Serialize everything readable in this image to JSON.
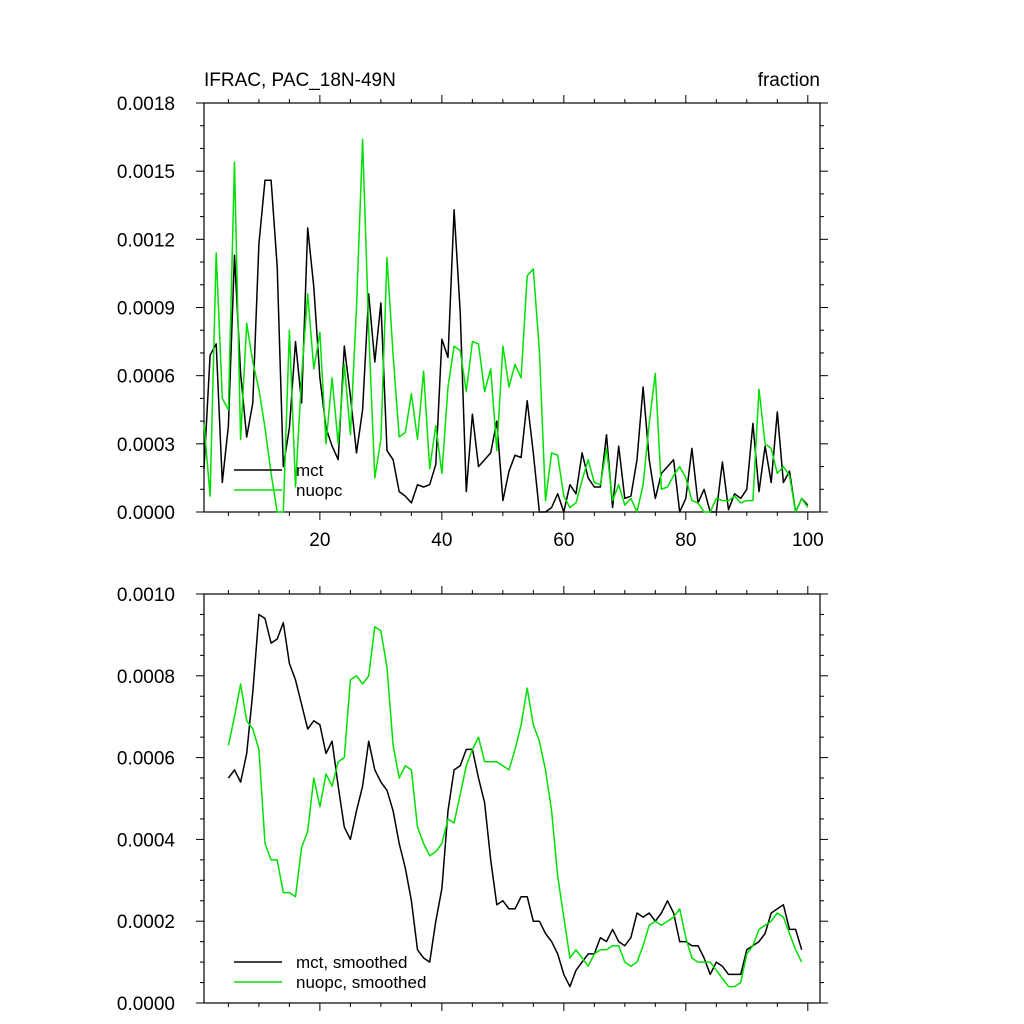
{
  "colors": {
    "mct": "#000000",
    "nuopc": "#00e000"
  },
  "chart_data": [
    {
      "type": "line",
      "title": "IFRAC, PAC_18N-49N",
      "units": "fraction",
      "xlim": [
        1,
        102
      ],
      "ylim": [
        0,
        0.0018
      ],
      "xticks": [
        20,
        40,
        60,
        80,
        100
      ],
      "xtick_labels": [
        "20",
        "40",
        "60",
        "80",
        "100"
      ],
      "yticks": [
        0,
        0.0003,
        0.0006,
        0.0009,
        0.0012,
        0.0015,
        0.0018
      ],
      "ytick_labels": [
        "0.0000",
        "0.0003",
        "0.0006",
        "0.0009",
        "0.0012",
        "0.0015",
        "0.0018"
      ],
      "grid": false,
      "legend_position": "bottom-left",
      "x_start": 1,
      "series": [
        {
          "name": "mct",
          "color": "#000000",
          "values": [
            0.00019,
            0.00069,
            0.00074,
            0.00013,
            0.00038,
            0.00113,
            0.00061,
            0.00033,
            0.00048,
            0.00118,
            0.00146,
            0.00146,
            0.00108,
            0.0002,
            0.00037,
            0.00075,
            0.00048,
            0.00125,
            0.00099,
            0.00059,
            0.00037,
            0.00029,
            0.00023,
            0.00073,
            0.00051,
            0.00026,
            0.00045,
            0.00096,
            0.00066,
            0.00092,
            0.00027,
            0.00023,
            9e-05,
            7e-05,
            4e-05,
            0.00012,
            0.00011,
            0.00012,
            0.00021,
            0.00076,
            0.00068,
            0.00133,
            0.00088,
            9e-05,
            0.00043,
            0.0002,
            0.00023,
            0.00026,
            0.0004,
            5e-05,
            0.00018,
            0.00025,
            0.00024,
            0.00049,
            0.00026,
            0.0,
            0.0,
            2e-05,
            8e-05,
            0.0,
            0.00012,
            8e-05,
            0.00026,
            0.00015,
            0.00011,
            0.00011,
            0.00034,
            2e-05,
            0.00029,
            6e-05,
            7e-05,
            0.00023,
            0.00055,
            0.00023,
            6e-05,
            0.00017,
            0.0002,
            0.00023,
            0.0,
            6e-05,
            0.00028,
            4e-05,
            0.0001,
            0.0,
            0.0,
            0.00022,
            1e-05,
            8e-05,
            6e-05,
            0.0001,
            0.00039,
            9e-05,
            0.00029,
            0.00013,
            0.00044,
            0.00013,
            0.00018,
            0.0,
            6e-05,
            3e-05
          ]
        },
        {
          "name": "nuopc",
          "color": "#00e000",
          "values": [
            0.00039,
            7e-05,
            0.00114,
            0.0005,
            0.00045,
            0.00154,
            0.00032,
            0.00083,
            0.00066,
            0.00054,
            0.00037,
            0.00017,
            0.0,
            0.0,
            0.0008,
            0.00011,
            0.0006,
            0.00096,
            0.00063,
            0.00079,
            0.0003,
            0.00059,
            0.0003,
            0.00065,
            0.00034,
            0.0009,
            0.00164,
            0.0008,
            0.00015,
            0.00032,
            0.00112,
            0.00069,
            0.00033,
            0.00035,
            0.00052,
            0.00032,
            0.00062,
            0.00019,
            0.00038,
            0.00017,
            0.00055,
            0.00073,
            0.00071,
            0.00053,
            0.00075,
            0.00074,
            0.00053,
            0.00063,
            0.00027,
            0.00073,
            0.00055,
            0.00065,
            0.00059,
            0.00104,
            0.00107,
            0.00071,
            5e-05,
            0.00026,
            0.00025,
            7e-05,
            2e-05,
            4e-05,
            0.00014,
            0.00023,
            0.00013,
            0.00012,
            0.00028,
            5e-05,
            0.00012,
            3e-05,
            6e-05,
            0.0,
            0.00012,
            0.00039,
            0.00061,
            0.0001,
            0.00011,
            0.00016,
            0.0002,
            0.00015,
            5e-05,
            4e-05,
            0.0,
            0.0,
            6e-05,
            5e-05,
            5e-05,
            7e-05,
            4e-05,
            5e-05,
            5e-05,
            0.00054,
            0.0003,
            0.00028,
            0.00017,
            0.0002,
            0.00016,
            0.0,
            6e-05,
            2e-05
          ]
        }
      ]
    },
    {
      "type": "line",
      "xlim": [
        1,
        102
      ],
      "ylim": [
        0,
        0.001
      ],
      "xticks": [
        20,
        40,
        60,
        80,
        100
      ],
      "yticks": [
        0,
        0.0002,
        0.0004,
        0.0006,
        0.0008,
        0.001
      ],
      "ytick_labels": [
        "0.0000",
        "0.0002",
        "0.0004",
        "0.0006",
        "0.0008",
        "0.0010"
      ],
      "grid": false,
      "legend_position": "bottom-left",
      "x_start": 5,
      "series": [
        {
          "name": "mct, smoothed",
          "color": "#000000",
          "values": [
            0.00055,
            0.00057,
            0.00054,
            0.00061,
            0.00076,
            0.00095,
            0.00094,
            0.00088,
            0.00089,
            0.00093,
            0.00083,
            0.00079,
            0.00073,
            0.00067,
            0.00069,
            0.00068,
            0.00061,
            0.00064,
            0.00053,
            0.00043,
            0.0004,
            0.00047,
            0.00053,
            0.00064,
            0.00057,
            0.00054,
            0.00052,
            0.00047,
            0.00039,
            0.00033,
            0.00025,
            0.00013,
            0.00011,
            0.0001,
            0.0002,
            0.00028,
            0.00047,
            0.00057,
            0.00058,
            0.00062,
            0.00062,
            0.00055,
            0.00049,
            0.00035,
            0.00024,
            0.00025,
            0.00023,
            0.00023,
            0.00026,
            0.00026,
            0.0002,
            0.0002,
            0.00017,
            0.00015,
            0.00012,
            7e-05,
            4e-05,
            8e-05,
            0.0001,
            0.00012,
            0.00012,
            0.00016,
            0.00015,
            0.00018,
            0.00015,
            0.00014,
            0.00016,
            0.00022,
            0.00021,
            0.00022,
            0.0002,
            0.00022,
            0.00025,
            0.00022,
            0.00015,
            0.00015,
            0.00014,
            0.00014,
            0.00011,
            7e-05,
            0.0001,
            9e-05,
            7e-05,
            7e-05,
            7e-05,
            0.00013,
            0.00014,
            0.00015,
            0.00017,
            0.00022,
            0.00023,
            0.00024,
            0.00018,
            0.00018,
            0.00013
          ]
        },
        {
          "name": "nuopc, smoothed",
          "color": "#00e000",
          "values": [
            0.00063,
            0.0007,
            0.00078,
            0.00069,
            0.00067,
            0.00062,
            0.00039,
            0.00035,
            0.00035,
            0.00027,
            0.00027,
            0.00026,
            0.00038,
            0.00042,
            0.00055,
            0.00048,
            0.00056,
            0.00053,
            0.00059,
            0.0006,
            0.00079,
            0.0008,
            0.00078,
            0.0008,
            0.00092,
            0.00091,
            0.00082,
            0.00063,
            0.00055,
            0.00058,
            0.00057,
            0.00043,
            0.00039,
            0.00036,
            0.00037,
            0.00039,
            0.00045,
            0.00044,
            0.00051,
            0.00058,
            0.00062,
            0.00065,
            0.00059,
            0.00059,
            0.00059,
            0.00058,
            0.00057,
            0.00062,
            0.00068,
            0.00077,
            0.00068,
            0.00064,
            0.00057,
            0.00047,
            0.00031,
            0.00021,
            0.00011,
            0.00013,
            0.00011,
            9e-05,
            0.00012,
            0.00013,
            0.00013,
            0.00014,
            0.00014,
            0.0001,
            9e-05,
            0.0001,
            0.00014,
            0.00019,
            0.0002,
            0.00019,
            0.0002,
            0.00021,
            0.00023,
            0.00016,
            0.00011,
            0.0001,
            0.0001,
            0.0001,
            8e-05,
            6e-05,
            4e-05,
            4e-05,
            5e-05,
            0.00012,
            0.00014,
            0.00018,
            0.00019,
            0.0002,
            0.00022,
            0.00021,
            0.00017,
            0.00013,
            0.0001
          ]
        }
      ]
    }
  ]
}
